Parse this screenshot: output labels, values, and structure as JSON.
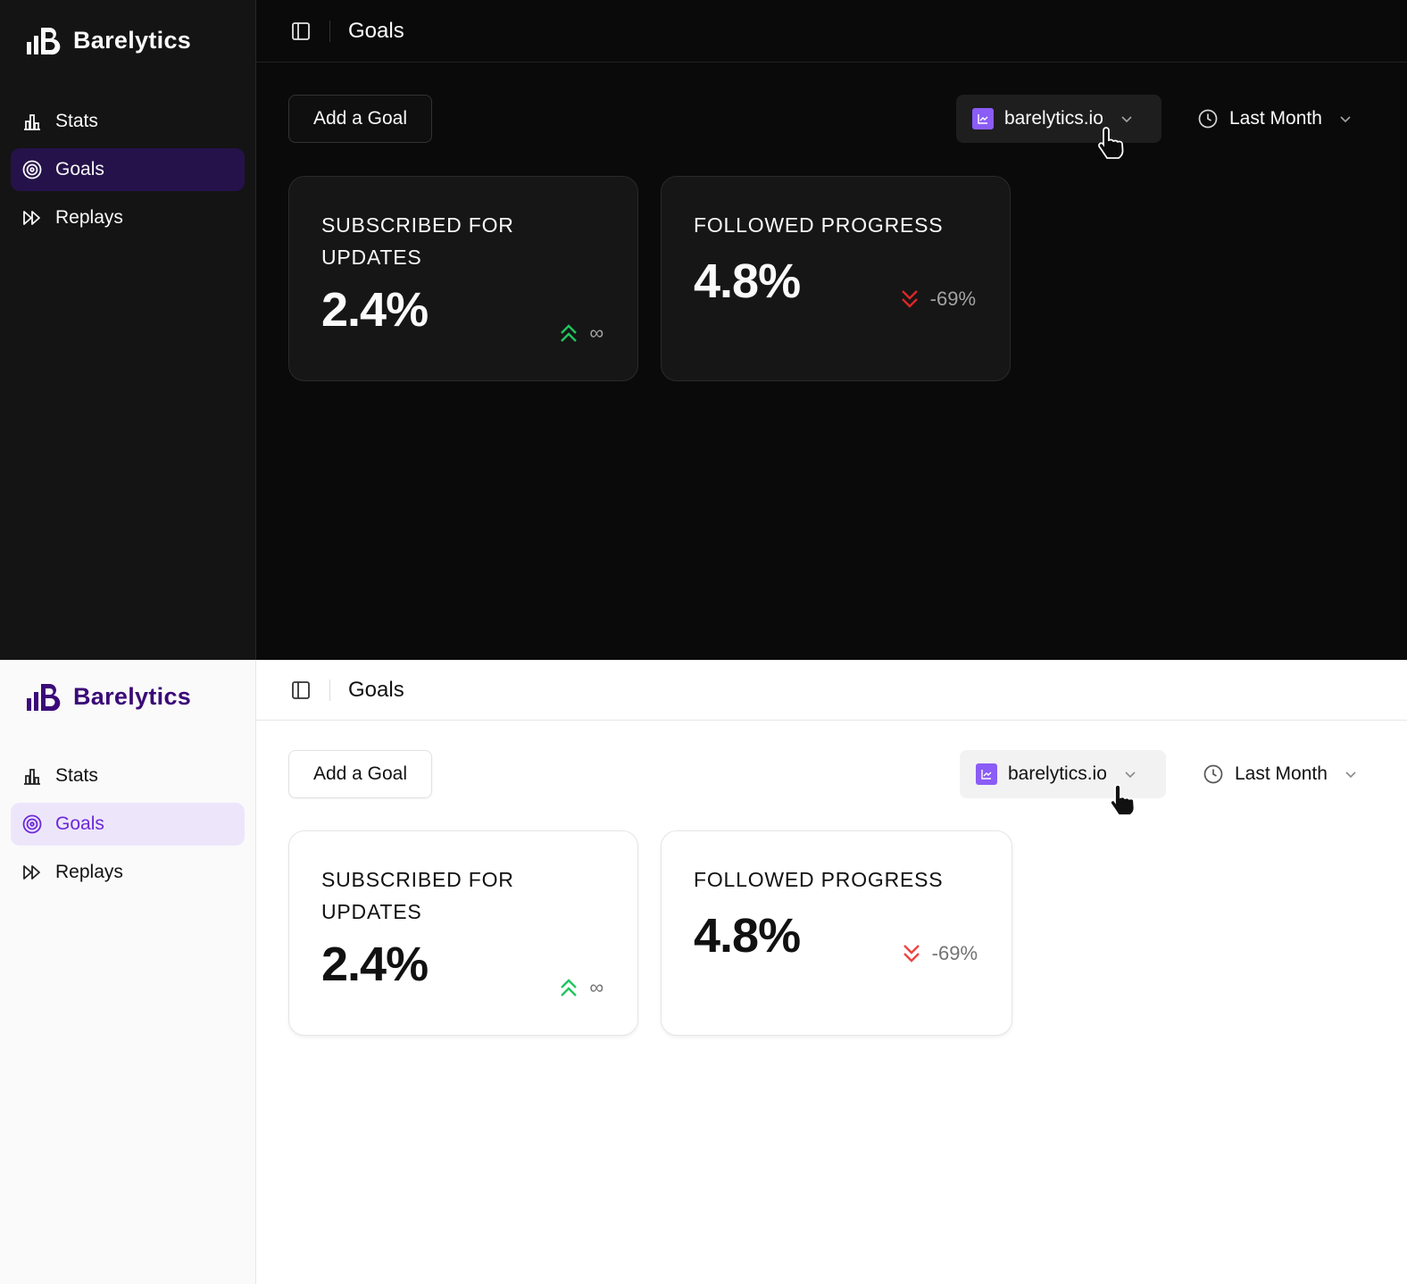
{
  "screens": {
    "dark": {
      "brand": {
        "name": "Barelytics"
      },
      "sidebar": {
        "items": [
          {
            "label": "Stats",
            "icon": "bar-chart-icon",
            "active": false
          },
          {
            "label": "Goals",
            "icon": "target-icon",
            "active": true
          },
          {
            "label": "Replays",
            "icon": "fast-forward-icon",
            "active": false
          }
        ]
      },
      "header": {
        "title": "Goals"
      },
      "toolbar": {
        "add_goal_label": "Add a Goal",
        "site": "barelytics.io",
        "range": "Last Month"
      },
      "cards": [
        {
          "title_line1": "SUBSCRIBED FOR",
          "title_line2": "UPDATES",
          "value": "2.4%",
          "trend": "∞",
          "trend_direction": "up"
        },
        {
          "title_line1": "FOLLOWED PROGRESS",
          "title_line2": "",
          "value": "4.8%",
          "trend": "-69%",
          "trend_direction": "down"
        }
      ]
    },
    "light": {
      "brand": {
        "name": "Barelytics"
      },
      "sidebar": {
        "items": [
          {
            "label": "Stats",
            "icon": "bar-chart-icon",
            "active": false
          },
          {
            "label": "Goals",
            "icon": "target-icon",
            "active": true
          },
          {
            "label": "Replays",
            "icon": "fast-forward-icon",
            "active": false
          }
        ]
      },
      "header": {
        "title": "Goals"
      },
      "toolbar": {
        "add_goal_label": "Add a Goal",
        "site": "barelytics.io",
        "range": "Last Month"
      },
      "cards": [
        {
          "title_line1": "SUBSCRIBED FOR",
          "title_line2": "UPDATES",
          "value": "2.4%",
          "trend": "∞",
          "trend_direction": "up"
        },
        {
          "title_line1": "FOLLOWED PROGRESS",
          "title_line2": "",
          "value": "4.8%",
          "trend": "-69%",
          "trend_direction": "down"
        }
      ]
    }
  },
  "colors": {
    "accent": "#8b5cf6",
    "brand_light": "#3b0a78",
    "active_bg_dark": "#25124a",
    "active_bg_light": "#ede6fb",
    "up": "#22c55e",
    "down_dark": "#dc2626",
    "down_light": "#ef4444"
  }
}
